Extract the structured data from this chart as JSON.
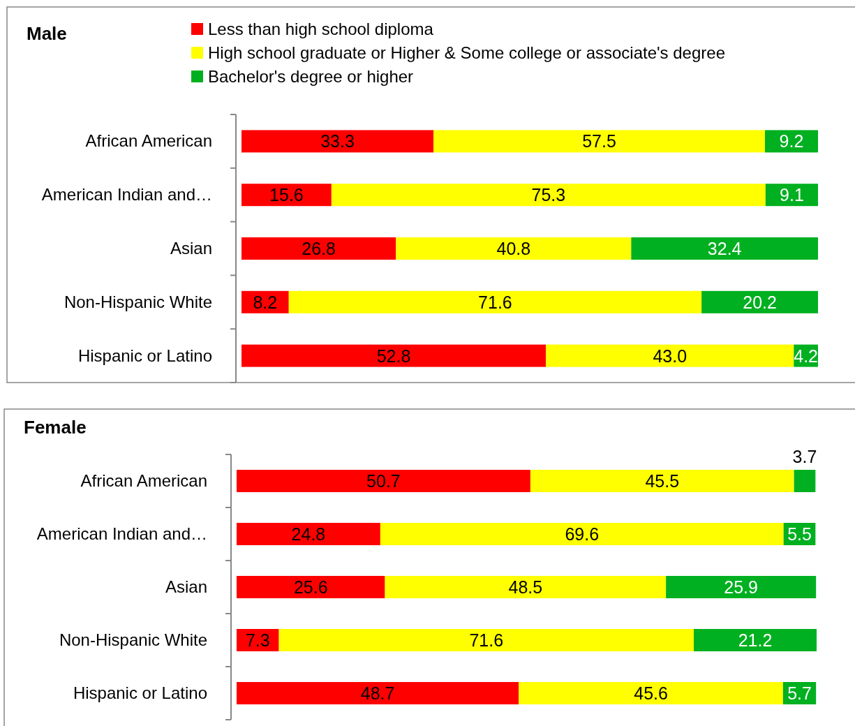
{
  "chart_data": [
    {
      "type": "bar",
      "title": "Male",
      "orientation": "horizontal",
      "stacked": true,
      "legend": "top",
      "categories": [
        "African American",
        "American Indian and…",
        "Asian",
        "Non-Hispanic White",
        "Hispanic or Latino"
      ],
      "series": [
        {
          "name": "Less than high school diploma",
          "color": "#ff0000",
          "values": [
            33.3,
            15.6,
            26.8,
            8.2,
            52.8
          ],
          "value_labels": [
            "33.3",
            "15.6",
            "26.8",
            "8.2",
            "52.8"
          ]
        },
        {
          "name": "High school graduate or Higher & Some college or associate's degree",
          "color": "#ffff00",
          "values": [
            57.5,
            75.3,
            40.8,
            71.6,
            43.0
          ],
          "value_labels": [
            "57.5",
            "75.3",
            "40.8",
            "71.6",
            "43.0"
          ]
        },
        {
          "name": "Bachelor's degree or higher",
          "color": "#00b020",
          "values": [
            9.2,
            9.1,
            32.4,
            20.2,
            4.2
          ],
          "value_labels": [
            "9.2",
            "9.1",
            "32.4",
            "20.2",
            "4.2"
          ]
        }
      ]
    },
    {
      "type": "bar",
      "title": "Female",
      "orientation": "horizontal",
      "stacked": true,
      "categories": [
        "African American",
        "American Indian and…",
        "Asian",
        "Non-Hispanic White",
        "Hispanic or Latino"
      ],
      "series": [
        {
          "color": "#ff0000",
          "values": [
            50.7,
            24.8,
            25.6,
            7.3,
            48.7
          ],
          "value_labels": [
            "50.7",
            "24.8",
            "25.6",
            "7.3",
            "48.7"
          ]
        },
        {
          "color": "#ffff00",
          "values": [
            45.5,
            69.6,
            48.5,
            71.6,
            45.6
          ],
          "value_labels": [
            "45.5",
            "69.6",
            "48.5",
            "71.6",
            "45.6"
          ]
        },
        {
          "color": "#00b020",
          "values": [
            3.7,
            5.5,
            25.9,
            21.2,
            5.7
          ],
          "value_labels": [
            "3.7",
            "5.5",
            "25.9",
            "21.2",
            "5.7"
          ]
        }
      ]
    }
  ]
}
